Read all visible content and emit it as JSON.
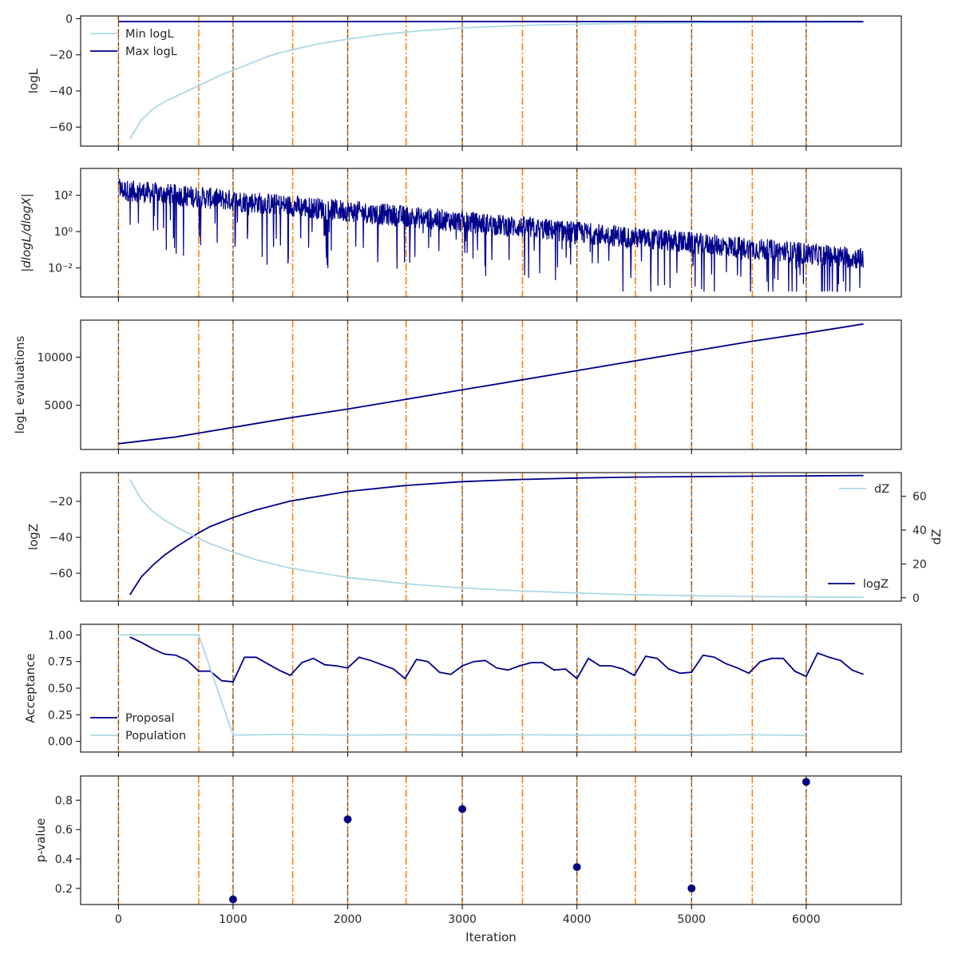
{
  "colors": {
    "light_series": "#add8e6",
    "dark_series": "#00008b",
    "orange_line": "#ff7f0e",
    "dark_dashed_line": "#444444",
    "axes": "#262626"
  },
  "chart_data": [
    {
      "type": "line",
      "ylabel": "logL",
      "xlim": [
        -330,
        6830
      ],
      "ylim": [
        -70.5,
        1.5
      ],
      "yticks": [
        0,
        -20,
        -40,
        -60
      ],
      "legend": "upper-left",
      "series": [
        {
          "name": "Min logL",
          "color": "#add8e6",
          "x": [
            100,
            200,
            300,
            400,
            500,
            600,
            700,
            800,
            900,
            1000,
            1100,
            1200,
            1300,
            1400,
            1500,
            1700,
            2000,
            2300,
            2600,
            3000,
            3500,
            4000,
            4500,
            5000,
            5500,
            6000,
            6500
          ],
          "y": [
            -66.5,
            -56,
            -50,
            -46,
            -43,
            -40,
            -37,
            -34,
            -31,
            -28.5,
            -26,
            -23.5,
            -21,
            -19,
            -17.5,
            -14.5,
            -11.3,
            -8.7,
            -6.9,
            -5.1,
            -3.8,
            -3.0,
            -2.6,
            -2.3,
            -2.15,
            -2.05,
            -2.0
          ]
        },
        {
          "name": "Max logL",
          "color": "#00008b",
          "x": [
            0,
            6500
          ],
          "y": [
            -1.6,
            -1.6
          ]
        }
      ]
    },
    {
      "type": "line",
      "ylabel": "|dlogL/dlogX|",
      "yscale": "log",
      "xlim": [
        -330,
        6830
      ],
      "ylim": [
        0.00025,
        3000
      ],
      "yticks": [
        100,
        1,
        0.01
      ],
      "yticklabels": [
        "10²",
        "10⁰",
        "10⁻²"
      ],
      "series": [
        {
          "color": "#00008b",
          "x_range": [
            0,
            6500
          ],
          "trend_log10": [
            2.3,
            -1.5
          ],
          "spread_log10": 1.2
        }
      ]
    },
    {
      "type": "line",
      "ylabel": "logL evaluations",
      "xlim": [
        -330,
        6830
      ],
      "ylim": [
        400,
        13850
      ],
      "yticks": [
        5000,
        10000
      ],
      "series": [
        {
          "color": "#00008b",
          "x": [
            0,
            500,
            1000,
            1500,
            2000,
            2500,
            3000,
            3500,
            4000,
            4500,
            5000,
            5500,
            6000,
            6500
          ],
          "y": [
            1000,
            1700,
            2700,
            3700,
            4600,
            5600,
            6600,
            7600,
            8600,
            9600,
            10600,
            11600,
            12500,
            13450
          ]
        }
      ]
    },
    {
      "type": "line",
      "ylabel": "logZ",
      "y2label": "dZ",
      "xlim": [
        -330,
        6830
      ],
      "ylim": [
        -75.5,
        -4
      ],
      "yticks": [
        -20,
        -40,
        -60
      ],
      "y2lim": [
        -2,
        74
      ],
      "y2ticks": [
        0,
        20,
        40,
        60
      ],
      "series": [
        {
          "name": "logZ",
          "color": "#00008b",
          "axis": "left",
          "legend": "lower-right",
          "x": [
            100,
            200,
            300,
            400,
            500,
            600,
            700,
            800,
            1000,
            1200,
            1500,
            2000,
            2500,
            3000,
            3500,
            4000,
            4500,
            5000,
            5500,
            6000,
            6500
          ],
          "y": [
            -72,
            -62,
            -55.5,
            -50,
            -45.5,
            -41.5,
            -37.5,
            -34,
            -29,
            -24.8,
            -19.8,
            -14.5,
            -11.2,
            -9.0,
            -7.8,
            -7.0,
            -6.5,
            -6.2,
            -6.0,
            -5.8,
            -5.6
          ]
        },
        {
          "name": "dZ",
          "color": "#add8e6",
          "axis": "right",
          "legend": "upper-right",
          "x": [
            100,
            200,
            300,
            400,
            500,
            600,
            700,
            800,
            1000,
            1200,
            1500,
            2000,
            2500,
            3000,
            3500,
            4000,
            4500,
            5000,
            5500,
            6000,
            6500
          ],
          "y": [
            70,
            58,
            51,
            46,
            42,
            38.5,
            35,
            32,
            27,
            22.5,
            17.5,
            12,
            8.3,
            5.8,
            4.1,
            2.8,
            1.8,
            1.2,
            0.8,
            0.5,
            0.3
          ]
        }
      ]
    },
    {
      "type": "line",
      "ylabel": "Acceptance",
      "xlim": [
        -330,
        6830
      ],
      "ylim": [
        -0.1,
        1.1
      ],
      "yticks": [
        0,
        0.25,
        0.5,
        0.75,
        1
      ],
      "yticklabels": [
        "0.00",
        "0.25",
        "0.50",
        "0.75",
        "1.00"
      ],
      "legend": "lower-left",
      "series": [
        {
          "name": "Proposal",
          "color": "#00008b",
          "x": [
            100,
            200,
            300,
            400,
            500,
            600,
            700,
            800,
            900,
            1000,
            1100,
            1200,
            1300,
            1400,
            1500,
            1600,
            1700,
            1800,
            1900,
            2000,
            2100,
            2200,
            2300,
            2400,
            2500,
            2600,
            2700,
            2800,
            2900,
            3000,
            3100,
            3200,
            3300,
            3400,
            3500,
            3600,
            3700,
            3800,
            3900,
            4000,
            4100,
            4200,
            4300,
            4400,
            4500,
            4600,
            4700,
            4800,
            4900,
            5000,
            5100,
            5200,
            5300,
            5400,
            5500,
            5600,
            5700,
            5800,
            5900,
            6000,
            6100,
            6200,
            6300,
            6400,
            6500
          ],
          "y": [
            0.98,
            0.93,
            0.87,
            0.82,
            0.81,
            0.76,
            0.66,
            0.66,
            0.57,
            0.56,
            0.79,
            0.79,
            0.73,
            0.67,
            0.62,
            0.74,
            0.78,
            0.72,
            0.71,
            0.69,
            0.79,
            0.76,
            0.72,
            0.68,
            0.59,
            0.77,
            0.75,
            0.65,
            0.63,
            0.71,
            0.75,
            0.76,
            0.69,
            0.67,
            0.71,
            0.74,
            0.74,
            0.67,
            0.68,
            0.59,
            0.78,
            0.71,
            0.71,
            0.68,
            0.62,
            0.8,
            0.78,
            0.68,
            0.64,
            0.65,
            0.81,
            0.79,
            0.73,
            0.69,
            0.64,
            0.75,
            0.78,
            0.78,
            0.66,
            0.61,
            0.83,
            0.79,
            0.76,
            0.67,
            0.63
          ]
        },
        {
          "name": "Population",
          "color": "#add8e6",
          "x": [
            0,
            700,
            1000,
            1500,
            2000,
            2500,
            3000,
            3500,
            4000,
            4500,
            5000,
            5500,
            6000
          ],
          "y": [
            1.0,
            1.0,
            0.06,
            0.065,
            0.058,
            0.063,
            0.06,
            0.062,
            0.059,
            0.06,
            0.058,
            0.062,
            0.057
          ]
        }
      ]
    },
    {
      "type": "scatter",
      "ylabel": "p-value",
      "xlabel": "Iteration",
      "xlim": [
        -330,
        6830
      ],
      "ylim": [
        0.09,
        0.965
      ],
      "yticks": [
        0.2,
        0.4,
        0.6,
        0.8
      ],
      "yticklabels": [
        "0.2",
        "0.4",
        "0.6",
        "0.8"
      ],
      "xticks": [
        0,
        1000,
        2000,
        3000,
        4000,
        5000,
        6000
      ],
      "xticklabels": [
        "0",
        "1000",
        "2000",
        "3000",
        "4000",
        "5000",
        "6000"
      ],
      "series": [
        {
          "color": "#00008b",
          "x": [
            1000,
            2000,
            3000,
            4000,
            5000,
            6000
          ],
          "y": [
            0.125,
            0.67,
            0.74,
            0.345,
            0.2,
            0.925
          ]
        }
      ]
    }
  ],
  "shared_vlines": {
    "orange_dashdot_x": [
      0,
      700,
      1000,
      1520,
      2000,
      2510,
      3000,
      3525,
      4000,
      4510,
      5000,
      5530,
      6000
    ],
    "dark_dashed_x": [
      0,
      1000,
      2000,
      3000,
      4000,
      5000,
      6000
    ]
  }
}
